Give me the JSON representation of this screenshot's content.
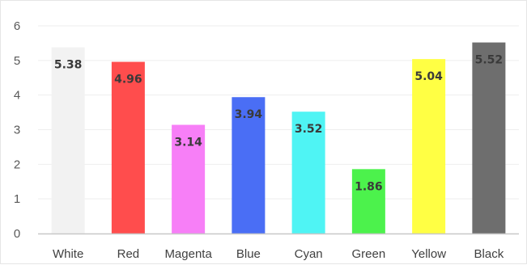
{
  "chart_data": {
    "type": "bar",
    "title": "",
    "xlabel": "",
    "ylabel": "",
    "categories": [
      "White",
      "Red",
      "Magenta",
      "Blue",
      "Cyan",
      "Green",
      "Yellow",
      "Black"
    ],
    "values": [
      5.38,
      4.96,
      3.14,
      3.94,
      3.52,
      1.86,
      5.04,
      5.52
    ],
    "data_labels": [
      "5.38",
      "4.96",
      "3.14",
      "3.94",
      "3.52",
      "1.86",
      "5.04",
      "5.52"
    ],
    "colors": [
      "#f2f2f2",
      "#ff4d4d",
      "#f77ff7",
      "#4a6ef5",
      "#4ff4f4",
      "#4cf24c",
      "#ffff44",
      "#6e6e6e"
    ],
    "ylim": [
      0,
      6
    ],
    "yticks": [
      0,
      1,
      2,
      3,
      4,
      5,
      6
    ],
    "ytick_labels": [
      "0",
      "1",
      "2",
      "3",
      "4",
      "5",
      "6"
    ],
    "grid": true,
    "legend": "none"
  }
}
